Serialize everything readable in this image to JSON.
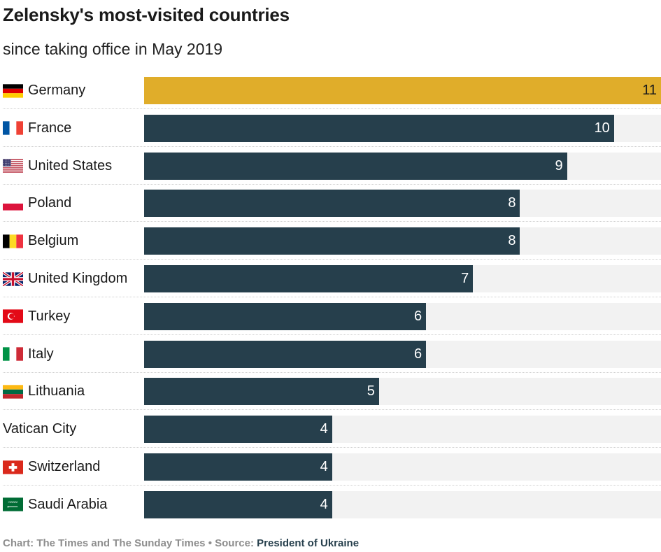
{
  "chart_data": {
    "type": "bar",
    "orientation": "horizontal",
    "title": "Zelensky's most-visited countries",
    "subtitle": "since taking office in May 2019",
    "categories": [
      "Germany",
      "France",
      "United States",
      "Poland",
      "Belgium",
      "United Kingdom",
      "Turkey",
      "Italy",
      "Lithuania",
      "Vatican City",
      "Switzerland",
      "Saudi Arabia"
    ],
    "values": [
      11,
      10,
      9,
      8,
      8,
      7,
      6,
      6,
      5,
      4,
      4,
      4
    ],
    "xlim": [
      0,
      11
    ],
    "grid": false,
    "legend": "none",
    "highlight_category": "Germany",
    "colors": {
      "default_bar": "#263f4c",
      "highlight_bar": "#e0ad2a",
      "track": "#f2f2f2"
    },
    "flag_icons": [
      "germany-flag-icon",
      "france-flag-icon",
      "united-states-flag-icon",
      "poland-flag-icon",
      "belgium-flag-icon",
      "united-kingdom-flag-icon",
      "turkey-flag-icon",
      "italy-flag-icon",
      "lithuania-flag-icon",
      "",
      "switzerland-flag-icon",
      "saudi-arabia-flag-icon"
    ]
  },
  "footer": {
    "credit": "Chart: The Times and The Sunday Times",
    "separator": "•",
    "source_label": "Source:",
    "source_name": "President of Ukraine"
  }
}
